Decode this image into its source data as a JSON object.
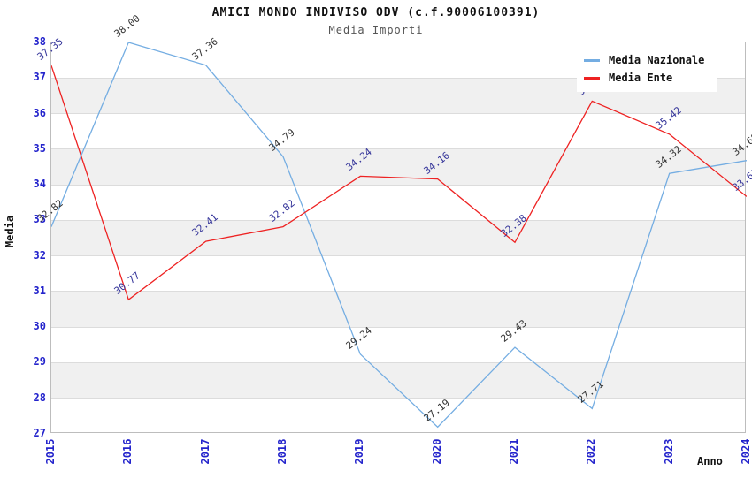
{
  "title": "AMICI MONDO INDIVISO ODV (c.f.90006100391)",
  "subtitle": "Media Importi",
  "axes": {
    "y_label": "Media",
    "x_label": "Anno",
    "y_ticks": [
      38,
      37,
      36,
      35,
      34,
      33,
      32,
      31,
      30,
      29,
      28,
      27
    ],
    "x_ticks": [
      "2015",
      "2016",
      "2017",
      "2018",
      "2019",
      "2020",
      "2021",
      "2022",
      "2023",
      "2024"
    ],
    "tick_color": "#2424cc"
  },
  "legend": {
    "position": "top-right",
    "items": [
      {
        "label": "Media Nazionale",
        "color": "#74ade2"
      },
      {
        "label": "Media Ente",
        "color": "#ee2222"
      }
    ]
  },
  "chart_data": {
    "type": "line",
    "x": [
      2015,
      2016,
      2017,
      2018,
      2019,
      2020,
      2021,
      2022,
      2023,
      2024
    ],
    "series": [
      {
        "name": "Media Nazionale",
        "color": "#74ade2",
        "label_color": "#333333",
        "values": [
          32.82,
          38.0,
          37.36,
          34.79,
          29.24,
          27.19,
          29.43,
          27.71,
          34.32,
          34.68
        ]
      },
      {
        "name": "Media Ente",
        "color": "#ee2222",
        "label_color": "#333399",
        "values": [
          37.35,
          30.77,
          32.41,
          32.82,
          34.24,
          34.16,
          32.38,
          36.35,
          35.42,
          33.67
        ]
      }
    ],
    "title": "AMICI MONDO INDIVISO ODV (c.f.90006100391)",
    "subtitle": "Media Importi",
    "xlabel": "Anno",
    "ylabel": "Media",
    "ylim": [
      27,
      38
    ],
    "grid": "horizontal-bands",
    "band_color": "#f0f0f0",
    "gridline_color": "#dcdcdc",
    "legend_position": "top-right"
  }
}
